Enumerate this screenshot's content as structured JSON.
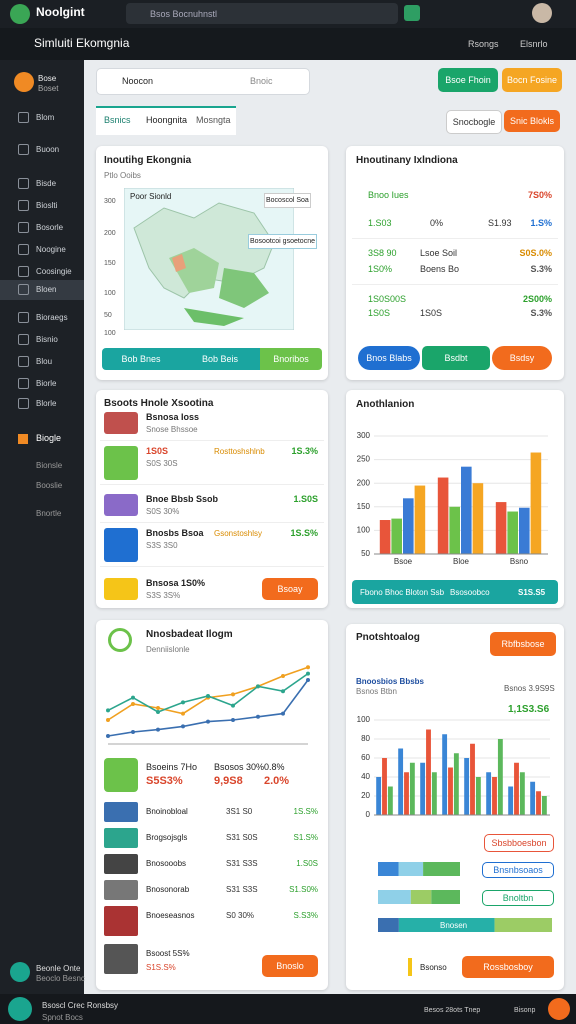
{
  "top_bar": {
    "app_name": "Noolgint",
    "search": "Bsos Bocnuhnstl"
  },
  "header": {
    "title": "Simluiti Ekomgnia",
    "links": [
      "Rsongs",
      "Elsnrlo"
    ]
  },
  "sidebar": {
    "profile": [
      "Bose",
      "Boset"
    ],
    "items": [
      "Blom",
      "Buoon",
      "Bisde",
      "Bioslti",
      "Bosorle",
      "Noogine",
      "Coosingie",
      "Bloen",
      "Bioraegs",
      "Bisnio",
      "Blou",
      "Biorle",
      "Blorle"
    ],
    "section": "Biogle",
    "sub_items": [
      "Bionsle",
      "Booslie",
      "Bnortle"
    ],
    "footer": [
      "Beonle Onte",
      "Beoclo Besnc"
    ]
  },
  "toolbar": {
    "search": "Noocon",
    "search_hint": "Bnoic",
    "buttons": [
      "Bsoe Fhoin",
      "Bocn Fosine"
    ],
    "tabs": [
      "Bsnics",
      "Hoongnita",
      "Mosngta"
    ],
    "right_buttons": [
      "Snocbogle",
      "Snic Blokls"
    ]
  },
  "map_card": {
    "title": "Inoutihg Ekongnia",
    "subtitle": "Ptlo Ooibs",
    "legend": "Poor Sionld",
    "callouts": [
      "Bocoscol Soa",
      "Bosootcoi gsoetocne"
    ],
    "axis_labels": [
      "300",
      "200",
      "150",
      "100",
      "50",
      "100"
    ],
    "buttons": [
      "Bob Bnes",
      "Bob Beis",
      "Bnoribos"
    ]
  },
  "stats_card": {
    "title": "Hnoutinany Ixlndiona",
    "rows": [
      [
        "Bnoo Iues",
        "7S0%"
      ],
      [
        "1.S03",
        "0%",
        "S1.93",
        "1.S%"
      ],
      [
        "3S8 90",
        "Lsoe Soil",
        "S0S.0%"
      ],
      [
        "1S0%",
        "Boens Bo",
        "S.3%"
      ],
      [
        "1S0S00S",
        "2S00%"
      ],
      [
        "1S0S",
        "1S0S",
        "S.3%"
      ]
    ],
    "buttons": [
      "Bnos Blabs",
      "Bsdbt",
      "Bsdsy"
    ]
  },
  "list_card": {
    "title": "Bsoots Hnole Xsootina",
    "items": [
      {
        "name": "Bsnosa Ioss",
        "detail": "Snose Bhssoe"
      },
      {
        "name": "1S0S",
        "detail": "S0S 30S",
        "value": "Rosttoshshlnb",
        "change": "1S.3%"
      },
      {
        "name": "Bnoe Bbsb Ssob",
        "detail": "S0S 30%",
        "change": "1.S0S"
      },
      {
        "name": "Bnosbs Bsoa",
        "detail": "S3S 3S0",
        "value": "Gsonstoshlsy",
        "change": "1S.S%"
      },
      {
        "name": "Bnsosa 1S0%",
        "detail": "S3S 3S%"
      }
    ],
    "button": "Bsoay"
  },
  "bar_card": {
    "title": "Anothlanion",
    "footer": [
      "Fbono Bhoc Bloton Ssb",
      "Bsosoobco",
      "S1S.S5"
    ]
  },
  "line_card": {
    "title": "Nnosbadeat Ilogm",
    "subtitle": "Denniislonle",
    "summary": [
      "Bsoeins 7Ho",
      "S5S3%",
      "Bsosos 30%",
      "9,9S8",
      "0.8%",
      "2.0%"
    ],
    "items": [
      {
        "name": "Bnoinobloal",
        "value": "3S1 S0",
        "change": "1S.S%"
      },
      {
        "name": "Brogsojsgls",
        "value": "S31 S0S",
        "change": "S1.S%"
      },
      {
        "name": "Bnosooobs",
        "value": "S31 S3S",
        "change": "1.S0S"
      },
      {
        "name": "Bnosonorab",
        "value": "S31 S3S",
        "change": "S1.S0%"
      },
      {
        "name": "Bnoeseasnos",
        "value": "S0 30%",
        "change": "S.S3%"
      },
      {
        "name": "Bsoost 5S%",
        "value": "S1S.S%"
      }
    ],
    "button": "Bnoslo"
  },
  "analysis_card": {
    "title": "Pnotshtoalog",
    "button": "Rbfbsbose",
    "subtitle": "Bnoosbios Bbsbs",
    "caption": "Bsnos Btbn",
    "total_label": "Bsnos 3.9S9S",
    "total": "1,1S3.S6",
    "action": "Sbsbboesbon",
    "progress": [
      {
        "label": "Bnsnbsoaos",
        "values": [
          25,
          30,
          45
        ],
        "colors": [
          "#3a86d6",
          "#8fd0e8",
          "#5cb85c"
        ]
      },
      {
        "label": "Bnoltbn",
        "values": [
          40,
          25,
          35
        ],
        "colors": [
          "#8fd0e8",
          "#9ccc65",
          "#5cb85c"
        ]
      },
      {
        "label": "Bnosen",
        "values": [
          12,
          55,
          33
        ],
        "colors": [
          "#3a6fb0",
          "#26b0a8",
          "#9ccc65"
        ]
      }
    ],
    "footer_label": "Bsonso",
    "footer_button": "Rossbosboy"
  },
  "bottom_bar": {
    "left": [
      "Bsoscl Crec Ronsbsy",
      "Spnot Bocs"
    ],
    "right": [
      "Besos 28ots Tnep",
      "Bisonp"
    ]
  },
  "chart_data": [
    {
      "type": "bar",
      "ylim": [
        50,
        300
      ],
      "yticks": [
        50,
        100,
        150,
        200,
        250,
        300
      ],
      "categories": [
        "Bsoe",
        "Bloe",
        "Bsno"
      ],
      "series": [
        {
          "color": "#e8553a",
          "values": [
            122,
            212,
            160
          ]
        },
        {
          "color": "#6cc24a",
          "values": [
            125,
            150,
            140
          ]
        },
        {
          "color": "#3a7bd5",
          "values": [
            168,
            235,
            148
          ]
        },
        {
          "color": "#f5a623",
          "values": [
            195,
            200,
            265
          ]
        }
      ]
    },
    {
      "type": "line",
      "ylim": [
        0,
        100
      ],
      "categories": [
        null,
        null,
        null,
        null,
        null,
        null,
        null,
        null,
        null
      ],
      "series": [
        {
          "color": "#f0a020",
          "values": [
            30,
            50,
            45,
            38,
            58,
            62,
            72,
            85,
            96
          ]
        },
        {
          "color": "#2ca58d",
          "values": [
            42,
            58,
            40,
            52,
            60,
            48,
            72,
            66,
            88
          ]
        },
        {
          "color": "#3a6fb0",
          "values": [
            10,
            15,
            18,
            22,
            28,
            30,
            34,
            38,
            80
          ]
        }
      ]
    },
    {
      "type": "bar",
      "ylim": [
        0,
        100
      ],
      "yticks": [
        0,
        20,
        40,
        60,
        80,
        100
      ],
      "categories": [
        null,
        null,
        null,
        null,
        null,
        null,
        null,
        null
      ],
      "series": [
        {
          "color": "#3a86d6",
          "values": [
            40,
            70,
            55,
            85,
            60,
            45,
            30,
            35
          ]
        },
        {
          "color": "#e8553a",
          "values": [
            60,
            45,
            90,
            50,
            75,
            40,
            55,
            25
          ]
        },
        {
          "color": "#5cb85c",
          "values": [
            30,
            55,
            45,
            65,
            40,
            80,
            45,
            20
          ]
        }
      ]
    }
  ]
}
